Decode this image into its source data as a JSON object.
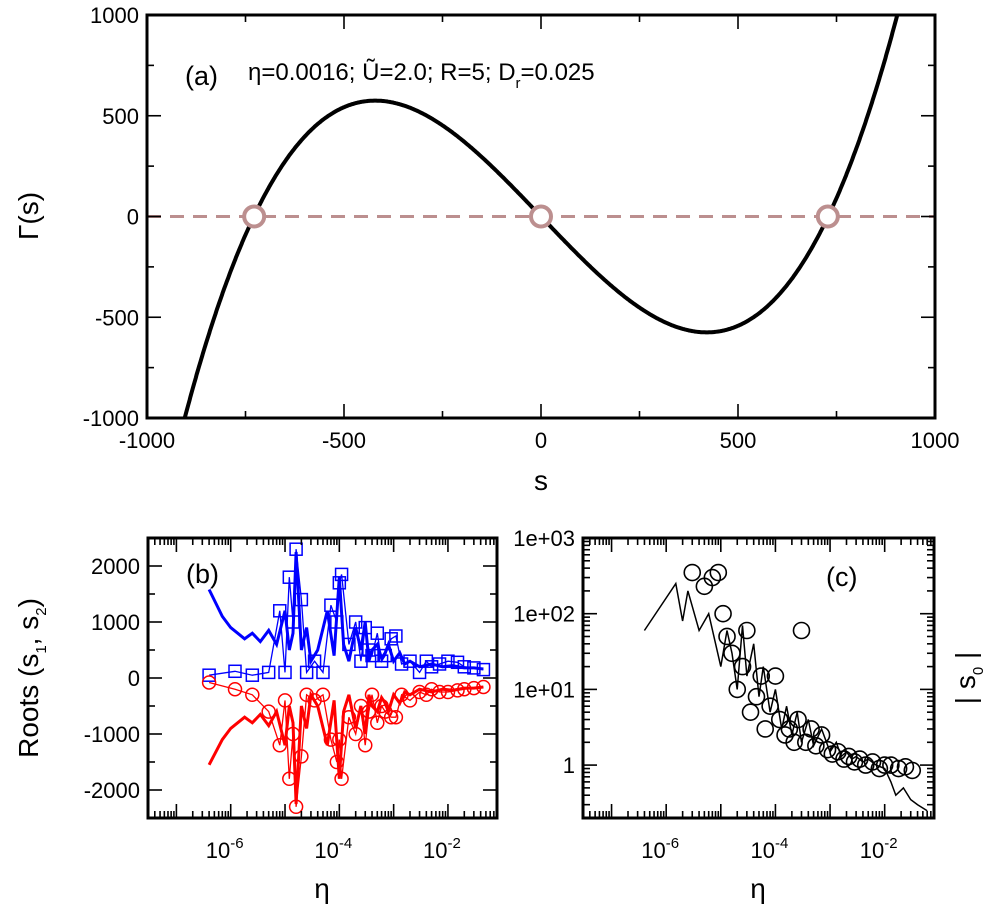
{
  "chart_data": [
    {
      "panel": "a",
      "type": "line",
      "panel_label": "(a)",
      "annotation": "η=0.0016; Ũ=2.0; R=5; D_r=0.025",
      "xlabel": "s",
      "ylabel": "Γ(s)",
      "xlim": [
        -1000,
        1000
      ],
      "ylim": [
        -1000,
        1000
      ],
      "xticks": [
        "-1000",
        "-500",
        "0",
        "500",
        "1000"
      ],
      "yticks": [
        "-1000",
        "-500",
        "0",
        "500",
        "1000"
      ],
      "curve": {
        "shape": "cubic",
        "coeffs": {
          "a": 3.86e-06,
          "c": -2.05
        }
      },
      "zero_line": {
        "y": 0,
        "color": "#bc8f8f",
        "style": "dashed"
      },
      "roots": [
        -728,
        0,
        728
      ],
      "colors": {
        "curve": "#000000",
        "zero_line": "#bc8f8f",
        "roots": "#bc8f8f"
      }
    },
    {
      "panel": "b",
      "type": "line",
      "panel_label": "(b)",
      "xlabel": "η",
      "ylabel": "Roots (s₁, s₂)",
      "xscale": "log",
      "xlim": [
        3e-08,
        0.08
      ],
      "ylim": [
        -2500,
        2500
      ],
      "xticks": [
        {
          "mant": "10",
          "exp": "-6",
          "value": 1e-06
        },
        {
          "mant": "10",
          "exp": "-4",
          "value": 0.0001
        },
        {
          "mant": "10",
          "exp": "-2",
          "value": 0.01
        }
      ],
      "yticks": [
        "-2000",
        "-1000",
        "0",
        "1000",
        "2000"
      ],
      "ytick_values": [
        -2000,
        -1000,
        0,
        1000,
        2000
      ],
      "series": [
        {
          "color": "#0000ff",
          "marker": "square",
          "line_x": [
            4e-07,
            7e-07,
            1e-06,
            1.8e-06,
            2.5e-06,
            3.5e-06,
            5e-06,
            7e-06,
            1e-05,
            1.2e-05,
            1.4e-05,
            1.6e-05,
            2e-05,
            2.5e-05,
            3e-05,
            4e-05,
            6e-05,
            8e-05,
            0.0001,
            0.00012,
            0.00015,
            0.0002,
            0.00025,
            0.0003,
            0.00035,
            0.0004,
            0.0005,
            0.0006,
            0.0007,
            0.0008,
            0.001,
            0.0013,
            0.0016,
            0.002,
            0.003,
            0.005,
            0.008,
            0.012,
            0.02,
            0.03,
            0.045
          ],
          "line_y": [
            1580,
            1100,
            900,
            700,
            800,
            650,
            850,
            600,
            1200,
            500,
            800,
            2250,
            500,
            900,
            300,
            500,
            1200,
            400,
            1800,
            600,
            300,
            900,
            500,
            1000,
            300,
            500,
            600,
            350,
            450,
            600,
            300,
            450,
            250,
            300,
            200,
            250,
            200,
            220,
            180,
            180,
            160
          ],
          "x": [
            4e-07,
            1.2e-06,
            2.5e-06,
            5e-06,
            8e-06,
            1e-05,
            1.2e-05,
            1.4e-05,
            1.6e-05,
            2e-05,
            2.5e-05,
            3.5e-05,
            5e-05,
            7e-05,
            9e-05,
            0.0001,
            0.00011,
            0.00015,
            0.0002,
            0.00025,
            0.0003,
            0.00035,
            0.0004,
            0.0005,
            0.0006,
            0.0007,
            0.0009,
            0.0011,
            0.0014,
            0.002,
            0.003,
            0.004,
            0.005,
            0.007,
            0.01,
            0.015,
            0.02,
            0.03,
            0.045
          ],
          "y": [
            50,
            120,
            50,
            100,
            1200,
            100,
            1800,
            1000,
            2300,
            1400,
            100,
            300,
            100,
            1300,
            1000,
            1700,
            1850,
            600,
            1000,
            300,
            900,
            500,
            400,
            800,
            300,
            400,
            700,
            750,
            250,
            300,
            100,
            300,
            200,
            250,
            300,
            280,
            200,
            180,
            150
          ]
        },
        {
          "color": "#ff0000",
          "marker": "circle",
          "line_x": [
            4e-07,
            7e-07,
            1e-06,
            1.8e-06,
            2.5e-06,
            3.5e-06,
            5e-06,
            7e-06,
            1e-05,
            1.2e-05,
            1.4e-05,
            1.6e-05,
            2e-05,
            2.5e-05,
            3e-05,
            4e-05,
            6e-05,
            8e-05,
            0.0001,
            0.00012,
            0.00015,
            0.0002,
            0.00025,
            0.0003,
            0.00035,
            0.0004,
            0.0005,
            0.0006,
            0.0007,
            0.0008,
            0.001,
            0.0013,
            0.0016,
            0.002,
            0.003,
            0.005,
            0.008,
            0.012,
            0.02,
            0.03,
            0.045
          ],
          "line_y": [
            -1550,
            -1100,
            -900,
            -700,
            -800,
            -650,
            -850,
            -600,
            -1200,
            -500,
            -800,
            -2250,
            -500,
            -900,
            -300,
            -500,
            -1200,
            -400,
            -1800,
            -600,
            -300,
            -900,
            -500,
            -1000,
            -300,
            -500,
            -600,
            -350,
            -450,
            -600,
            -300,
            -450,
            -250,
            -300,
            -200,
            -250,
            -200,
            -220,
            -180,
            -180,
            -160
          ],
          "x": [
            4e-07,
            1.2e-06,
            2.5e-06,
            5e-06,
            8e-06,
            1e-05,
            1.2e-05,
            1.4e-05,
            1.6e-05,
            2e-05,
            2.5e-05,
            3.5e-05,
            5e-05,
            7e-05,
            9e-05,
            0.0001,
            0.00011,
            0.00015,
            0.0002,
            0.00025,
            0.0003,
            0.00035,
            0.0004,
            0.0005,
            0.0006,
            0.0007,
            0.0009,
            0.0011,
            0.0014,
            0.002,
            0.003,
            0.004,
            0.005,
            0.007,
            0.01,
            0.015,
            0.02,
            0.03,
            0.045
          ],
          "y": [
            -80,
            -200,
            -300,
            -600,
            -1200,
            -400,
            -1800,
            -1000,
            -2300,
            -1400,
            -300,
            -400,
            -300,
            -1100,
            -1500,
            -1100,
            -1800,
            -700,
            -1000,
            -500,
            -1200,
            -600,
            -300,
            -800,
            -500,
            -600,
            -700,
            -700,
            -300,
            -400,
            -250,
            -300,
            -200,
            -250,
            -250,
            -220,
            -200,
            -180,
            -160
          ]
        }
      ]
    },
    {
      "panel": "c",
      "type": "scatter",
      "panel_label": "(c)",
      "xlabel": "η",
      "ylabel": "| s₀ |",
      "xscale": "log",
      "yscale": "log",
      "xlim": [
        3e-08,
        0.08
      ],
      "ylim": [
        0.2,
        1000
      ],
      "xticks": [
        {
          "mant": "10",
          "exp": "-6",
          "value": 1e-06
        },
        {
          "mant": "10",
          "exp": "-4",
          "value": 0.0001
        },
        {
          "mant": "10",
          "exp": "-2",
          "value": 0.01
        }
      ],
      "yticks": [
        "1",
        "1e+01",
        "1e+02",
        "1e+03"
      ],
      "ytick_values": [
        1,
        10,
        100,
        1000
      ],
      "series": [
        {
          "color": "#000000",
          "marker": "open-circle",
          "line_x": [
            4e-07,
            1.5e-06,
            2e-06,
            2.5e-06,
            4e-06,
            6e-06,
            1e-05,
            1.3e-05,
            1.6e-05,
            2e-05,
            2.5e-05,
            3e-05,
            4e-05,
            5e-05,
            6e-05,
            8e-05,
            0.0001,
            0.00013,
            0.00016,
            0.0002,
            0.00025,
            0.0003,
            0.0004,
            0.0005,
            0.0007,
            0.001,
            0.0013,
            0.0016,
            0.002,
            0.0025,
            0.003,
            0.004,
            0.005,
            0.007,
            0.01,
            0.013,
            0.016,
            0.022,
            0.03,
            0.04,
            0.06
          ],
          "line_y": [
            60,
            250,
            80,
            200,
            60,
            100,
            20,
            60,
            30,
            10,
            70,
            15,
            40,
            8,
            20,
            5,
            10,
            3,
            6,
            2.5,
            5,
            2,
            4,
            1.8,
            3,
            1.5,
            2,
            1.3,
            1.5,
            1.2,
            1.3,
            1.1,
            1.2,
            1.0,
            0.9,
            0.6,
            0.4,
            0.5,
            0.35,
            0.3,
            0.25
          ],
          "x": [
            3e-06,
            5e-06,
            7e-06,
            9e-06,
            1.1e-05,
            1.3e-05,
            1.6e-05,
            2e-05,
            2.5e-05,
            3e-05,
            3.5e-05,
            4.5e-05,
            5.5e-05,
            6.5e-05,
            8e-05,
            0.0001,
            0.00012,
            0.00015,
            0.00018,
            0.00022,
            0.00026,
            0.0003,
            0.00036,
            0.00045,
            0.00055,
            0.0007,
            0.0009,
            0.0011,
            0.0014,
            0.0018,
            0.0022,
            0.0028,
            0.0035,
            0.0045,
            0.006,
            0.008,
            0.01,
            0.013,
            0.018,
            0.024,
            0.032
          ],
          "y": [
            350,
            230,
            300,
            350,
            100,
            50,
            30,
            10,
            20,
            60,
            5,
            8,
            15,
            3,
            6,
            15,
            4,
            2.5,
            3,
            2,
            4,
            60,
            2,
            3,
            1.8,
            2.5,
            1.6,
            1.4,
            1.5,
            1.2,
            1.3,
            1.1,
            1.2,
            1.0,
            1.1,
            0.9,
            1.0,
            1.0,
            0.9,
            0.95,
            0.85
          ]
        }
      ]
    }
  ]
}
